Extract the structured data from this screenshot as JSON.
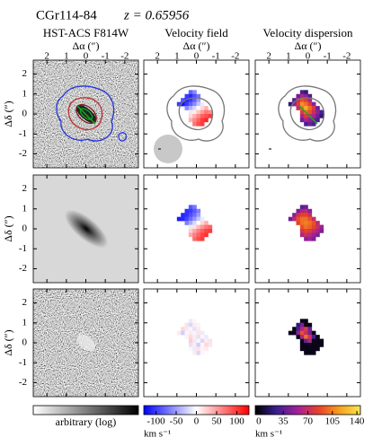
{
  "title": "CGr114-84",
  "redshift": "z = 0.65956",
  "columns": [
    {
      "title": "HST-ACS F814W"
    },
    {
      "title": "Velocity field"
    },
    {
      "title": "Velocity dispersion"
    }
  ],
  "axes": {
    "x_label": "Δα (″)",
    "y_label": "Δδ (″)",
    "xlim": [
      2.7,
      -2.7
    ],
    "ylim": [
      -2.7,
      2.7
    ],
    "ticks": [
      2,
      1,
      0,
      -1,
      -2
    ]
  },
  "colorbars": [
    {
      "label": "arbitrary (log)",
      "colors": [
        "#ffffff",
        "#000000"
      ]
    },
    {
      "lim": [
        -130,
        130
      ],
      "ticks": [
        -100,
        -50,
        0,
        50,
        100
      ],
      "unit": "km s⁻¹",
      "colors": [
        "#0000ff",
        "#ffffff",
        "#ff0000"
      ]
    },
    {
      "lim": [
        -5,
        145
      ],
      "ticks": [
        0,
        35,
        70,
        105,
        140
      ],
      "unit": "km s⁻¹",
      "colors": [
        "#000000",
        "#3a1f8f",
        "#a0209a",
        "#e8402a",
        "#f5a020",
        "#f8e850"
      ]
    }
  ],
  "maps": {
    "velocity": [
      [
        [
          null,
          null,
          null,
          -80,
          -60,
          null,
          null,
          null,
          null,
          null
        ],
        [
          null,
          null,
          -100,
          -110,
          -90,
          -70,
          null,
          null,
          null,
          null
        ],
        [
          null,
          -90,
          -110,
          -100,
          -80,
          -50,
          null,
          null,
          null,
          null
        ],
        [
          -100,
          -120,
          -100,
          -80,
          -60,
          -30,
          -10,
          null,
          null,
          null
        ],
        [
          null,
          null,
          -60,
          -40,
          -20,
          0,
          20,
          40,
          null,
          null
        ],
        [
          null,
          null,
          null,
          -10,
          10,
          30,
          50,
          70,
          60,
          null
        ],
        [
          null,
          null,
          null,
          20,
          40,
          60,
          80,
          90,
          100,
          null
        ],
        [
          null,
          null,
          null,
          40,
          60,
          80,
          100,
          110,
          null,
          null
        ],
        [
          null,
          null,
          null,
          null,
          70,
          90,
          100,
          null,
          null,
          null
        ]
      ],
      [
        [
          null,
          null,
          null,
          -85,
          -70,
          null,
          null,
          null,
          null,
          null
        ],
        [
          null,
          null,
          -105,
          -100,
          -85,
          -65,
          null,
          null,
          null,
          null
        ],
        [
          null,
          -110,
          -105,
          -90,
          -75,
          -50,
          null,
          null,
          null,
          null
        ],
        [
          -115,
          -110,
          -95,
          -75,
          -55,
          -30,
          -10,
          null,
          null,
          null
        ],
        [
          null,
          null,
          -65,
          -45,
          -20,
          0,
          20,
          40,
          null,
          null
        ],
        [
          null,
          null,
          null,
          -10,
          15,
          35,
          55,
          70,
          80,
          null
        ],
        [
          null,
          null,
          null,
          25,
          45,
          65,
          80,
          95,
          100,
          null
        ],
        [
          null,
          null,
          null,
          45,
          65,
          80,
          95,
          105,
          null,
          null
        ],
        [
          null,
          null,
          null,
          null,
          75,
          90,
          100,
          null,
          null,
          null
        ]
      ],
      [
        [
          null,
          null,
          null,
          -10,
          5,
          null,
          null,
          null,
          null,
          null
        ],
        [
          null,
          null,
          15,
          -20,
          10,
          -5,
          null,
          null,
          null,
          null
        ],
        [
          null,
          20,
          -10,
          5,
          -15,
          10,
          null,
          null,
          null,
          null
        ],
        [
          10,
          -25,
          5,
          10,
          -5,
          15,
          -10,
          null,
          null,
          null
        ],
        [
          null,
          null,
          -5,
          20,
          10,
          -15,
          5,
          -10,
          null,
          null
        ],
        [
          null,
          null,
          null,
          25,
          -10,
          5,
          -20,
          10,
          15,
          null
        ],
        [
          null,
          null,
          null,
          -15,
          10,
          -25,
          5,
          20,
          -10,
          null
        ],
        [
          null,
          null,
          null,
          5,
          -10,
          15,
          -5,
          10,
          null,
          null
        ],
        [
          null,
          null,
          null,
          null,
          10,
          -20,
          5,
          null,
          null,
          null
        ]
      ]
    ],
    "dispersion": [
      [
        [
          null,
          null,
          null,
          30,
          20,
          null,
          null,
          null,
          null,
          null
        ],
        [
          null,
          null,
          40,
          60,
          50,
          30,
          null,
          null,
          null,
          null
        ],
        [
          null,
          30,
          70,
          90,
          80,
          60,
          null,
          null,
          null,
          null
        ],
        [
          20,
          50,
          80,
          110,
          100,
          80,
          50,
          null,
          null,
          null
        ],
        [
          null,
          null,
          70,
          100,
          120,
          100,
          80,
          40,
          null,
          null
        ],
        [
          null,
          null,
          null,
          80,
          100,
          90,
          70,
          50,
          30,
          null
        ],
        [
          null,
          null,
          null,
          60,
          80,
          70,
          60,
          40,
          20,
          null
        ],
        [
          null,
          null,
          null,
          40,
          60,
          50,
          40,
          30,
          null,
          null
        ],
        [
          null,
          null,
          null,
          null,
          30,
          40,
          30,
          null,
          null,
          null
        ]
      ],
      [
        [
          null,
          null,
          null,
          35,
          40,
          null,
          null,
          null,
          null,
          null
        ],
        [
          null,
          null,
          45,
          60,
          65,
          50,
          null,
          null,
          null,
          null
        ],
        [
          null,
          50,
          75,
          85,
          85,
          70,
          null,
          null,
          null,
          null
        ],
        [
          40,
          65,
          90,
          100,
          100,
          90,
          70,
          null,
          null,
          null
        ],
        [
          null,
          null,
          85,
          100,
          105,
          100,
          90,
          65,
          null,
          null
        ],
        [
          null,
          null,
          null,
          90,
          100,
          95,
          85,
          70,
          55,
          null
        ],
        [
          null,
          null,
          null,
          75,
          85,
          80,
          70,
          60,
          45,
          null
        ],
        [
          null,
          null,
          null,
          60,
          70,
          65,
          55,
          45,
          null,
          null
        ],
        [
          null,
          null,
          null,
          null,
          50,
          55,
          45,
          null,
          null,
          null
        ]
      ],
      [
        [
          null,
          null,
          null,
          0,
          0,
          null,
          null,
          null,
          null,
          null
        ],
        [
          null,
          null,
          20,
          45,
          0,
          0,
          null,
          null,
          null,
          null
        ],
        [
          null,
          0,
          30,
          60,
          80,
          40,
          null,
          null,
          null,
          null
        ],
        [
          0,
          0,
          50,
          90,
          70,
          45,
          0,
          null,
          null,
          null
        ],
        [
          null,
          null,
          0,
          60,
          100,
          75,
          30,
          0,
          null,
          null
        ],
        [
          null,
          null,
          null,
          0,
          40,
          60,
          0,
          0,
          0,
          null
        ],
        [
          null,
          null,
          null,
          0,
          0,
          0,
          0,
          0,
          0,
          null
        ],
        [
          null,
          null,
          null,
          0,
          0,
          0,
          0,
          0,
          null,
          null
        ],
        [
          null,
          null,
          null,
          null,
          0,
          0,
          0,
          null,
          null,
          null
        ]
      ]
    ]
  }
}
